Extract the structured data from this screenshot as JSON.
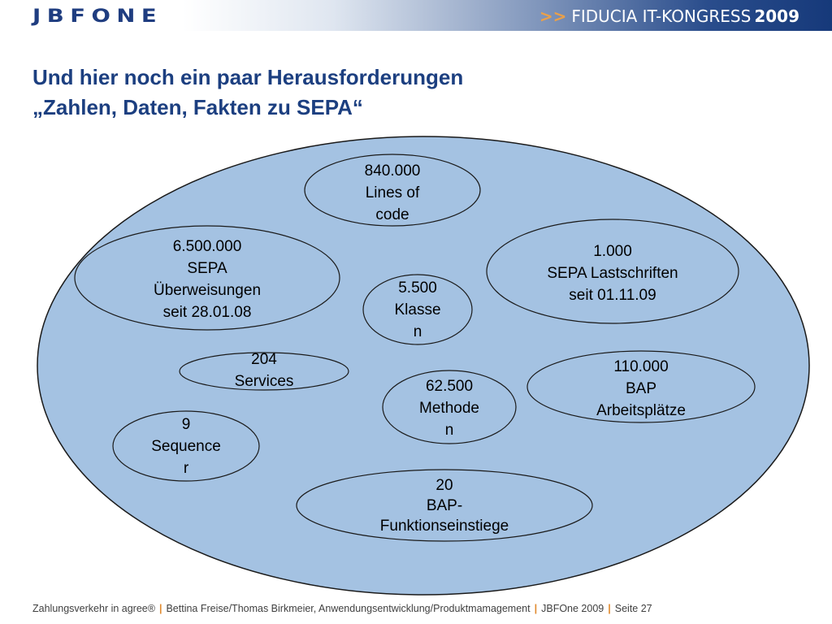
{
  "header": {
    "logo_text": "JBFONE",
    "congress_prefix": ">>",
    "congress_name": "FIDUCIA IT-KONGRESS",
    "congress_year": "2009"
  },
  "slide": {
    "title_line1": "Und hier noch ein paar Herausforderungen",
    "title_line2": "„Zahlen, Daten, Fakten zu SEPA“"
  },
  "diagram": {
    "bubbles": [
      {
        "id": "lines-of-code",
        "lines": [
          "840.000",
          "Lines of",
          "code"
        ]
      },
      {
        "id": "sepa-ueberweisungen",
        "lines": [
          "6.500.000",
          "SEPA",
          "Überweisungen",
          "seit 28.01.08"
        ]
      },
      {
        "id": "sepa-lastschriften",
        "lines": [
          "1.000",
          "SEPA Lastschriften",
          "seit 01.11.09"
        ]
      },
      {
        "id": "klassen",
        "lines": [
          "5.500",
          "Klasse",
          "n"
        ]
      },
      {
        "id": "services",
        "lines": [
          "204",
          "Services"
        ]
      },
      {
        "id": "bap-arbeitsplaetze",
        "lines": [
          "110.000",
          "BAP",
          "Arbeitsplätze"
        ]
      },
      {
        "id": "methoden",
        "lines": [
          "62.500",
          "Methode",
          "n"
        ]
      },
      {
        "id": "sequencer",
        "lines": [
          "9",
          "Sequence",
          "r"
        ]
      },
      {
        "id": "funktionseinstiege",
        "lines": [
          "20",
          "BAP-",
          "Funktionseinstiege"
        ]
      }
    ]
  },
  "footer": {
    "part1": "Zahlungsverkehr in agree®",
    "part2": "Bettina Freise/Thomas Birkmeier, Anwendungsentwicklung/Produktmamagement",
    "part3": "JBFOne 2009",
    "part4": "Seite 27"
  },
  "colors": {
    "big_ellipse_fill": "#a4c2e2",
    "bubble_fill": "#a4c2e2",
    "title": "#1c3f80",
    "accent": "#e08a2e"
  }
}
